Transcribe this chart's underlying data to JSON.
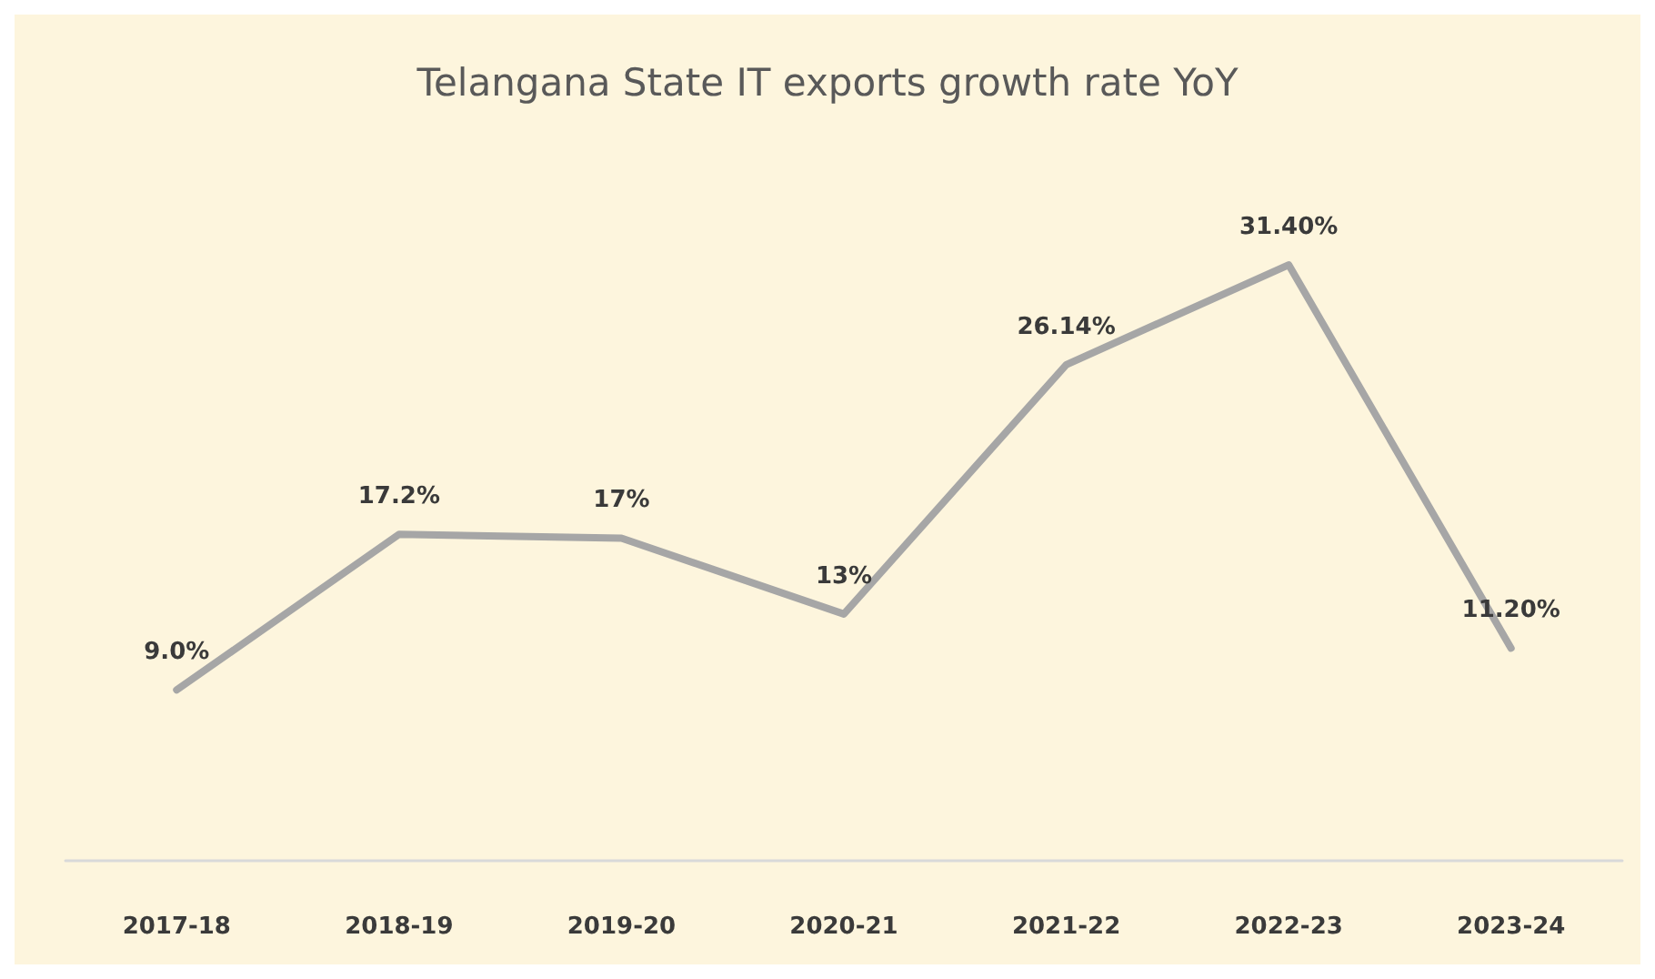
{
  "chart_data": {
    "type": "line",
    "title": "Telangana State IT exports growth rate YoY",
    "categories": [
      "2017-18",
      "2018-19",
      "2019-20",
      "2020-21",
      "2021-22",
      "2022-23",
      "2023-24"
    ],
    "series": [
      {
        "color": "#a6a6a6",
        "values": [
          9.0,
          17.2,
          17,
          13,
          26.14,
          31.4,
          11.2
        ],
        "value_labels": [
          "9.0%",
          "17.2%",
          "17%",
          "13%",
          "26.14%",
          "31.40%",
          "11.20%"
        ]
      }
    ],
    "grid": false,
    "marker": "none",
    "line_style": "solid"
  }
}
